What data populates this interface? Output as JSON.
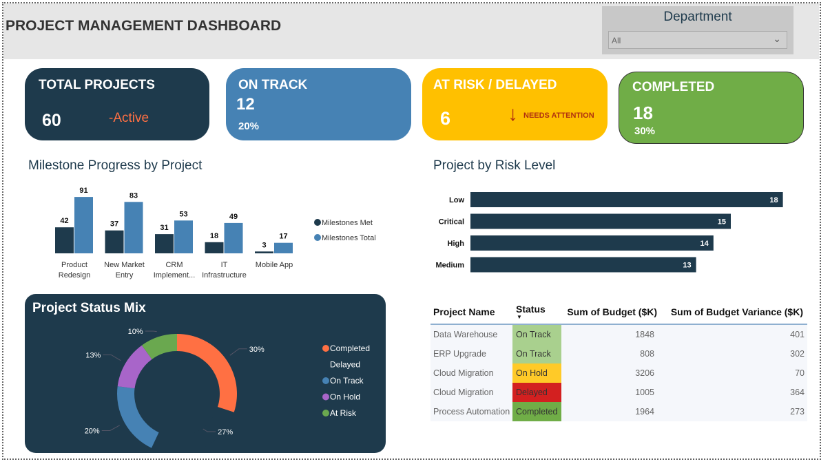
{
  "header": {
    "title": "PROJECT MANAGEMENT DASHBOARD",
    "department_label": "Department",
    "department_value": "All"
  },
  "kpis": {
    "total": {
      "label": "TOTAL PROJECTS",
      "value": "60",
      "note": "-Active",
      "color": "#1e3a4c"
    },
    "on_track": {
      "label": "ON TRACK",
      "value": "12",
      "pct": "20%",
      "color": "#4682b4"
    },
    "at_risk": {
      "label": "AT RISK / DELAYED",
      "value": "6",
      "note": "NEEDS ATTENTION",
      "icon": "arrow-down-icon",
      "color": "#ffc000"
    },
    "completed": {
      "label": "COMPLETED",
      "value": "18",
      "pct": "30%",
      "color": "#70ad47"
    }
  },
  "chart_data": [
    {
      "type": "bar",
      "title": "Milestone Progress by Project",
      "categories": [
        "Product Redesign",
        "New Market Entry",
        "CRM Implement...",
        "IT Infrastructure",
        "Mobile App"
      ],
      "series": [
        {
          "name": "Milestones Met",
          "values": [
            42,
            37,
            31,
            18,
            3
          ],
          "color": "#1e3a4c"
        },
        {
          "name": "Milestones Total",
          "values": [
            91,
            83,
            53,
            49,
            17
          ],
          "color": "#4682b4"
        }
      ],
      "legend": "right"
    },
    {
      "type": "bar",
      "orientation": "horizontal",
      "title": "Project by Risk Level",
      "categories": [
        "Low",
        "Critical",
        "High",
        "Medium"
      ],
      "values": [
        18,
        15,
        14,
        13
      ],
      "color": "#1e3a4c"
    },
    {
      "type": "pie",
      "variant": "donut",
      "title": "Project Status Mix",
      "categories": [
        "Completed",
        "Delayed",
        "On Track",
        "On Hold",
        "At Risk"
      ],
      "values": [
        30,
        27,
        20,
        13,
        10
      ],
      "labels": [
        "30%",
        "27%",
        "20%",
        "13%",
        "10%"
      ],
      "colors": [
        "#ff7043",
        "#1e3a4c",
        "#4682b4",
        "#a865c9",
        "#6aa84f"
      ],
      "legend": "right"
    }
  ],
  "table": {
    "columns": [
      "Project Name",
      "Status",
      "Sum of Budget ($K)",
      "Sum of Budget Variance ($K)"
    ],
    "rows": [
      {
        "name": "Data Warehouse",
        "status": "On Track",
        "budget": "1848",
        "variance": "401",
        "color": "#a9d08e"
      },
      {
        "name": "ERP Upgrade",
        "status": "On Track",
        "budget": "808",
        "variance": "302",
        "color": "#a9d08e"
      },
      {
        "name": "Cloud Migration",
        "status": "On Hold",
        "budget": "3206",
        "variance": "70",
        "color": "#ffca28"
      },
      {
        "name": "Cloud Migration",
        "status": "Delayed",
        "budget": "1005",
        "variance": "364",
        "color": "#d32020"
      },
      {
        "name": "Process Automation",
        "status": "Completed",
        "budget": "1964",
        "variance": "273",
        "color": "#70ad47"
      }
    ]
  }
}
